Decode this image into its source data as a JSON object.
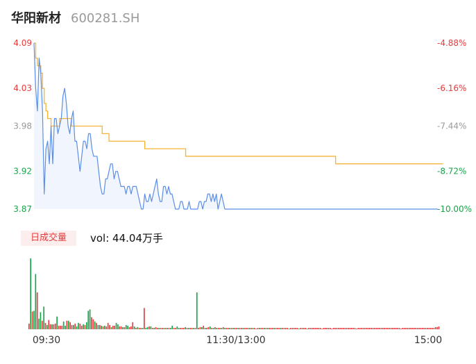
{
  "header": {
    "name": "华阳新材",
    "code": "600281.SH"
  },
  "volume_panel": {
    "label": "日成交量",
    "prefix": "vol: ",
    "value": "44.04万手"
  },
  "colors": {
    "up": "#e83a3a",
    "down": "#1aa34a",
    "neutral": "#999999",
    "price_line": "#5b8ee6",
    "avg_line": "#f5b335",
    "area_fill": "#e8eefb"
  },
  "chart_data": [
    {
      "type": "line",
      "y_ticks_left": [
        {
          "value": 4.09,
          "label": "4.09",
          "tone": "up"
        },
        {
          "value": 4.03,
          "label": "4.03",
          "tone": "up"
        },
        {
          "value": 3.98,
          "label": "3.98",
          "tone": "neutral"
        },
        {
          "value": 3.92,
          "label": "3.92",
          "tone": "down"
        },
        {
          "value": 3.87,
          "label": "3.87",
          "tone": "down"
        }
      ],
      "y_ticks_right": [
        {
          "value": 4.09,
          "label": "-4.88%",
          "tone": "up"
        },
        {
          "value": 4.03,
          "label": "-6.16%",
          "tone": "up"
        },
        {
          "value": 3.98,
          "label": "-7.44%",
          "tone": "neutral"
        },
        {
          "value": 3.92,
          "label": "-8.72%",
          "tone": "down"
        },
        {
          "value": 3.87,
          "label": "-10.00%",
          "tone": "down"
        }
      ],
      "ylim": [
        3.87,
        4.09
      ],
      "x_ticks": [
        "09:30",
        "11:30/13:00",
        "15:00"
      ],
      "series": [
        {
          "values": [
            4.09,
            4.03,
            4.0,
            4.07,
            4.05,
            4.0,
            3.89,
            3.95,
            3.96,
            3.93,
            3.98,
            3.93,
            3.99,
            3.99,
            3.97,
            3.98,
            3.99,
            4.02,
            4.03,
            4.01,
            3.98,
            3.97,
            3.99,
            4.0,
            3.96,
            3.96,
            3.94,
            3.92,
            3.94,
            3.96,
            3.96,
            3.95,
            3.97,
            3.97,
            3.95,
            3.94,
            3.94,
            3.94,
            3.92,
            3.9,
            3.89,
            3.89,
            3.91,
            3.91,
            3.92,
            3.93,
            3.93,
            3.91,
            3.92,
            3.92,
            3.91,
            3.9,
            3.9,
            3.9,
            3.89,
            3.9,
            3.9,
            3.89,
            3.9,
            3.9,
            3.9,
            3.89,
            3.88,
            3.87,
            3.87,
            3.89,
            3.88,
            3.88,
            3.89,
            3.88,
            3.89,
            3.9,
            3.91,
            3.89,
            3.88,
            3.88,
            3.9,
            3.9,
            3.89,
            3.9,
            3.89,
            3.89,
            3.88,
            3.87,
            3.87,
            3.87,
            3.88,
            3.88,
            3.87,
            3.87,
            3.87,
            3.88,
            3.87,
            3.87,
            3.87,
            3.87,
            3.87,
            3.88,
            3.88,
            3.87,
            3.88,
            3.88,
            3.89,
            3.89,
            3.88,
            3.89,
            3.88,
            3.89,
            3.87,
            3.88,
            3.89,
            3.88,
            3.87,
            3.87,
            3.87,
            3.87,
            3.87,
            3.87,
            3.87,
            3.87,
            3.87,
            3.87,
            3.87,
            3.87,
            3.87,
            3.87,
            3.87,
            3.87,
            3.87,
            3.87,
            3.87,
            3.87,
            3.87,
            3.87,
            3.87,
            3.87,
            3.87,
            3.87,
            3.87,
            3.87,
            3.87,
            3.87,
            3.87,
            3.87,
            3.87,
            3.87,
            3.87,
            3.87,
            3.87,
            3.87,
            3.87,
            3.87,
            3.87,
            3.87,
            3.87,
            3.87,
            3.87,
            3.87,
            3.87,
            3.87,
            3.87,
            3.87,
            3.87,
            3.87,
            3.87,
            3.87,
            3.87,
            3.87,
            3.87,
            3.87,
            3.87,
            3.87,
            3.87,
            3.87,
            3.87,
            3.87,
            3.87,
            3.87,
            3.87,
            3.87,
            3.87,
            3.87,
            3.87,
            3.87,
            3.87,
            3.87,
            3.87,
            3.87,
            3.87,
            3.87,
            3.87,
            3.87,
            3.87,
            3.87,
            3.87,
            3.87,
            3.87,
            3.87,
            3.87,
            3.87,
            3.87,
            3.87,
            3.87,
            3.87,
            3.87,
            3.87,
            3.87,
            3.87,
            3.87,
            3.87,
            3.87,
            3.87,
            3.87,
            3.87,
            3.87,
            3.87,
            3.87,
            3.87,
            3.87,
            3.87,
            3.87,
            3.87,
            3.87,
            3.87,
            3.87,
            3.87,
            3.87,
            3.87,
            3.87,
            3.87,
            3.87,
            3.87,
            3.87,
            3.87,
            3.87,
            3.87,
            3.87,
            3.87
          ]
        },
        {
          "values": [
            4.09,
            4.07,
            4.06,
            4.06,
            4.05,
            4.03,
            4.01,
            4.0,
            3.99,
            3.99,
            3.98,
            3.98,
            3.98,
            3.98,
            3.98,
            3.99,
            3.99,
            3.99,
            3.99,
            3.99,
            3.99,
            3.99,
            3.98,
            3.98,
            3.98,
            3.98,
            3.98,
            3.98,
            3.98,
            3.98,
            3.98,
            3.98,
            3.98,
            3.98,
            3.98,
            3.98,
            3.98,
            3.98,
            3.98,
            3.98,
            3.97,
            3.97,
            3.97,
            3.97,
            3.96,
            3.96,
            3.96,
            3.96,
            3.96,
            3.96,
            3.96,
            3.96,
            3.96,
            3.96,
            3.96,
            3.96,
            3.96,
            3.96,
            3.96,
            3.96,
            3.96,
            3.96,
            3.96,
            3.96,
            3.96,
            3.95,
            3.95,
            3.95,
            3.95,
            3.95,
            3.95,
            3.95,
            3.95,
            3.95,
            3.95,
            3.95,
            3.95,
            3.95,
            3.95,
            3.95,
            3.95,
            3.95,
            3.95,
            3.95,
            3.95,
            3.95,
            3.95,
            3.95,
            3.95,
            3.94,
            3.94,
            3.94,
            3.94,
            3.94,
            3.94,
            3.94,
            3.94,
            3.94,
            3.94,
            3.94,
            3.94,
            3.94,
            3.94,
            3.94,
            3.94,
            3.94,
            3.94,
            3.94,
            3.94,
            3.94,
            3.94,
            3.94,
            3.94,
            3.94,
            3.94,
            3.94,
            3.94,
            3.94,
            3.94,
            3.94,
            3.94,
            3.94,
            3.94,
            3.94,
            3.94,
            3.94,
            3.94,
            3.94,
            3.94,
            3.94,
            3.94,
            3.94,
            3.94,
            3.94,
            3.94,
            3.94,
            3.94,
            3.94,
            3.94,
            3.94,
            3.94,
            3.94,
            3.94,
            3.94,
            3.94,
            3.94,
            3.94,
            3.94,
            3.94,
            3.94,
            3.94,
            3.94,
            3.94,
            3.94,
            3.94,
            3.94,
            3.94,
            3.94,
            3.94,
            3.94,
            3.94,
            3.94,
            3.94,
            3.94,
            3.94,
            3.94,
            3.94,
            3.94,
            3.94,
            3.94,
            3.94,
            3.94,
            3.94,
            3.94,
            3.94,
            3.94,
            3.94,
            3.93,
            3.93,
            3.93,
            3.93,
            3.93,
            3.93,
            3.93,
            3.93,
            3.93,
            3.93,
            3.93,
            3.93,
            3.93,
            3.93,
            3.93,
            3.93,
            3.93,
            3.93,
            3.93,
            3.93,
            3.93,
            3.93,
            3.93,
            3.93,
            3.93,
            3.93,
            3.93,
            3.93,
            3.93,
            3.93,
            3.93,
            3.93,
            3.93,
            3.93,
            3.93,
            3.93,
            3.93,
            3.93,
            3.93,
            3.93,
            3.93,
            3.93,
            3.93,
            3.93,
            3.93,
            3.93,
            3.93,
            3.93,
            3.93,
            3.93,
            3.93,
            3.93,
            3.93,
            3.93,
            3.93,
            3.93,
            3.93,
            3.93,
            3.93,
            3.93,
            3.93,
            3.93,
            3.93,
            3.93
          ]
        }
      ]
    },
    {
      "type": "bar",
      "ylim": [
        0,
        100
      ],
      "values": [
        8,
        100,
        25,
        26,
        78,
        52,
        15,
        24,
        12,
        32,
        9,
        6,
        13,
        7,
        7,
        7,
        8,
        18,
        5,
        5,
        5,
        11,
        5,
        12,
        12,
        10,
        6,
        6,
        8,
        4,
        9,
        8,
        5,
        7,
        6,
        10,
        26,
        28,
        17,
        14,
        11,
        9,
        6,
        6,
        5,
        4,
        5,
        4,
        9,
        6,
        3,
        5,
        5,
        9,
        7,
        4,
        4,
        3,
        3,
        6,
        5,
        3,
        4,
        10,
        4,
        2,
        3,
        2,
        2,
        2,
        30,
        2,
        3,
        4,
        4,
        2,
        2,
        3,
        2,
        2,
        2,
        2,
        2,
        2,
        2,
        2,
        2,
        5,
        2,
        2,
        4,
        2,
        2,
        2,
        2,
        3,
        2,
        2,
        2,
        2,
        2,
        2,
        52,
        2,
        3,
        3,
        5,
        2,
        2,
        3,
        4,
        2,
        2,
        3,
        2,
        2,
        2,
        2,
        3,
        2,
        2,
        2,
        2,
        2,
        2,
        2,
        2,
        2,
        2,
        2,
        2,
        2,
        2,
        2,
        2,
        2,
        2,
        2,
        1,
        2,
        2,
        2,
        2,
        2,
        2,
        2,
        2,
        2,
        2,
        2,
        2,
        2,
        2,
        2,
        2,
        2,
        2,
        2,
        1,
        2,
        2,
        2,
        2,
        2,
        1,
        2,
        2,
        2,
        2,
        1,
        2,
        2,
        2,
        2,
        2,
        2,
        2,
        2,
        1,
        2,
        2,
        2,
        2,
        2,
        1,
        2,
        2,
        2,
        2,
        2,
        2,
        2,
        2,
        2,
        2,
        2,
        2,
        2,
        2,
        1,
        2,
        2,
        2,
        2,
        2,
        2,
        2,
        2,
        2,
        2,
        2,
        2,
        2,
        2,
        2,
        2,
        2,
        2,
        2,
        2,
        2,
        2,
        2,
        2,
        2,
        2,
        1,
        2,
        2,
        2,
        2,
        2,
        2,
        2,
        2,
        2,
        2,
        2,
        2,
        2,
        2,
        2,
        2,
        2,
        2,
        2,
        2,
        3,
        3,
        4
      ],
      "colors": [
        "u",
        "d",
        "u",
        "d",
        "d",
        "u",
        "d",
        "d",
        "u",
        "d",
        "u",
        "d",
        "u",
        "u",
        "d",
        "u",
        "u",
        "d",
        "u",
        "u",
        "u",
        "d",
        "d",
        "u",
        "d",
        "u",
        "u",
        "d",
        "u",
        "d",
        "d",
        "u",
        "u",
        "d",
        "u",
        "d",
        "d",
        "d",
        "u",
        "u",
        "d",
        "u",
        "d",
        "u",
        "d",
        "u",
        "d",
        "u",
        "u",
        "u",
        "d",
        "u",
        "u",
        "d",
        "d",
        "u",
        "u",
        "d",
        "u",
        "d",
        "d",
        "u",
        "u",
        "u",
        "d",
        "u",
        "d",
        "u",
        "u",
        "d",
        "u",
        "d",
        "d",
        "u",
        "d",
        "u",
        "d",
        "u",
        "u",
        "d",
        "u",
        "u",
        "d",
        "u",
        "d",
        "u",
        "d",
        "d",
        "u",
        "u",
        "d",
        "d",
        "u",
        "u",
        "u",
        "d",
        "u",
        "d",
        "u",
        "u",
        "d",
        "u",
        "d",
        "u",
        "u",
        "d",
        "u",
        "d",
        "u",
        "u",
        "d",
        "u",
        "d",
        "u",
        "d",
        "u",
        "u",
        "d",
        "u",
        "d",
        "u",
        "u",
        "d",
        "u",
        "d",
        "u",
        "u",
        "d",
        "u",
        "u",
        "d",
        "u",
        "u",
        "u",
        "d",
        "u",
        "d",
        "u",
        "u",
        "u",
        "d",
        "u",
        "u",
        "d",
        "u",
        "d",
        "u",
        "u",
        "u",
        "d",
        "u",
        "u",
        "u",
        "d",
        "u",
        "u",
        "u",
        "u",
        "d",
        "u",
        "u",
        "u",
        "u",
        "u",
        "d",
        "u",
        "u",
        "u",
        "u",
        "d",
        "u",
        "u",
        "u",
        "u",
        "u",
        "u",
        "u",
        "u",
        "u",
        "u",
        "u",
        "u",
        "u",
        "u",
        "u",
        "u",
        "u",
        "u",
        "u",
        "u",
        "u",
        "u",
        "u",
        "u",
        "u",
        "u",
        "u",
        "u",
        "u",
        "u",
        "u",
        "u",
        "u",
        "u",
        "u",
        "u",
        "u",
        "u",
        "u",
        "u",
        "u",
        "u",
        "u",
        "u",
        "u",
        "u",
        "u",
        "u",
        "u",
        "u",
        "u",
        "u",
        "u",
        "u",
        "u",
        "u",
        "u",
        "u",
        "u",
        "u",
        "u",
        "u",
        "u",
        "u",
        "u",
        "u",
        "u",
        "u",
        "u",
        "u",
        "u",
        "u",
        "u",
        "u",
        "u",
        "u",
        "u",
        "u",
        "u",
        "u",
        "u",
        "u",
        "u"
      ]
    }
  ]
}
